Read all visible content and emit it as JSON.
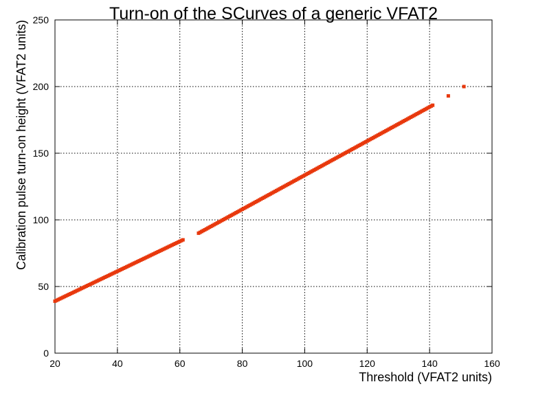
{
  "chart_data": {
    "type": "scatter",
    "title": "Turn-on of the SCurves of a generic VFAT2",
    "xlabel": "Threshold (VFAT2 units)",
    "ylabel": "Calibration pulse turn-on height (VFAT2 units)",
    "xlim": [
      20,
      160
    ],
    "ylim": [
      0,
      250
    ],
    "xticks": [
      "20",
      "40",
      "60",
      "80",
      "100",
      "120",
      "140",
      "160"
    ],
    "yticks": [
      "0",
      "50",
      "100",
      "150",
      "200",
      "250"
    ],
    "grid": true,
    "marker_color": "#e8380d",
    "segments": [
      {
        "x_start": 20,
        "x_end": 61,
        "y_start": 39,
        "y_end": 85
      },
      {
        "x_start": 66,
        "x_end": 141,
        "y_start": 90,
        "y_end": 186
      }
    ],
    "extra_points": [
      {
        "x": 146,
        "y": 193
      },
      {
        "x": 151,
        "y": 200
      }
    ]
  }
}
